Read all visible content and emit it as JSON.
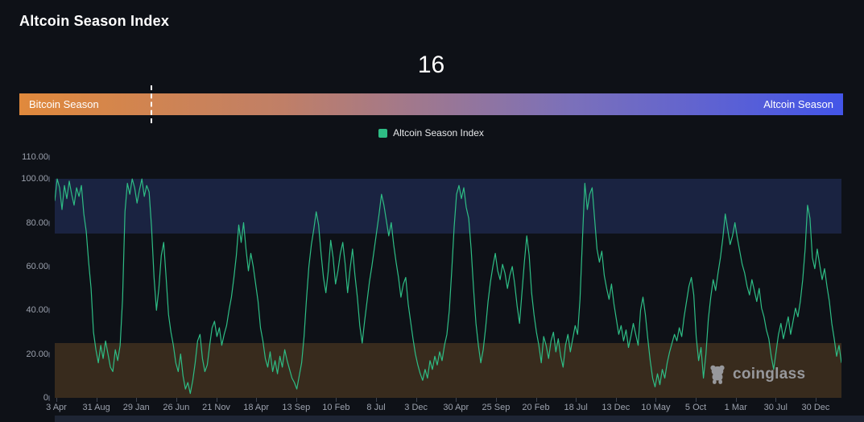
{
  "header": {
    "title": "Altcoin Season Index"
  },
  "gauge": {
    "value": "16",
    "left_label": "Bitcoin Season",
    "right_label": "Altcoin Season",
    "marker_percent": 16,
    "color_start": "#e0893c",
    "color_end": "#4355e8"
  },
  "legend": {
    "label": "Altcoin Season Index",
    "swatch_color": "#2ebd85"
  },
  "watermark": {
    "text": "coinglass"
  },
  "chart_data": {
    "type": "line",
    "title": "Altcoin Season Index",
    "series_name": "Altcoin Season Index",
    "line_color": "#2ebd85",
    "ylim": [
      0,
      110
    ],
    "grid": false,
    "legend_position": "top-center",
    "y_tick_labels": [
      "110.00",
      "100.00",
      "80.00",
      "60.00",
      "40.00",
      "20.00",
      "0"
    ],
    "y_tick_values": [
      110,
      100,
      80,
      60,
      40,
      20,
      0
    ],
    "x_tick_labels": [
      "3 Apr",
      "31 Aug",
      "29 Jan",
      "26 Jun",
      "21 Nov",
      "18 Apr",
      "13 Sep",
      "10 Feb",
      "8 Jul",
      "3 Dec",
      "30 Apr",
      "25 Sep",
      "20 Feb",
      "18 Jul",
      "13 Dec",
      "10 May",
      "5 Oct",
      "1 Mar",
      "30 Jul",
      "30 Dec"
    ],
    "bands": [
      {
        "name": "altcoin-season-zone",
        "from": 75,
        "to": 100,
        "color": "#1a2341"
      },
      {
        "name": "bitcoin-season-zone",
        "from": 0,
        "to": 25,
        "color": "#382b1d"
      }
    ],
    "values": [
      90,
      100,
      96,
      86,
      97,
      91,
      99,
      93,
      88,
      96,
      92,
      97,
      84,
      76,
      62,
      50,
      30,
      22,
      16,
      24,
      18,
      26,
      20,
      14,
      12,
      22,
      17,
      24,
      45,
      85,
      98,
      93,
      100,
      96,
      89,
      95,
      100,
      92,
      97,
      94,
      78,
      55,
      40,
      50,
      65,
      71,
      55,
      38,
      30,
      24,
      16,
      12,
      20,
      10,
      4,
      7,
      2,
      8,
      16,
      26,
      29,
      18,
      12,
      15,
      24,
      32,
      35,
      28,
      32,
      24,
      29,
      33,
      40,
      46,
      55,
      65,
      79,
      71,
      80,
      68,
      58,
      66,
      60,
      52,
      44,
      32,
      26,
      18,
      14,
      21,
      12,
      17,
      11,
      19,
      14,
      22,
      17,
      13,
      9,
      7,
      4,
      10,
      16,
      28,
      45,
      60,
      70,
      77,
      85,
      79,
      66,
      55,
      48,
      58,
      72,
      64,
      52,
      58,
      66,
      71,
      61,
      48,
      59,
      68,
      56,
      46,
      33,
      25,
      35,
      44,
      53,
      60,
      68,
      76,
      84,
      93,
      88,
      81,
      74,
      80,
      70,
      62,
      55,
      46,
      52,
      55,
      43,
      35,
      27,
      20,
      15,
      11,
      8,
      13,
      9,
      17,
      13,
      19,
      15,
      21,
      17,
      24,
      29,
      40,
      58,
      78,
      93,
      97,
      91,
      96,
      87,
      82,
      68,
      50,
      34,
      24,
      16,
      22,
      32,
      44,
      53,
      60,
      66,
      58,
      54,
      61,
      57,
      50,
      56,
      60,
      52,
      42,
      34,
      48,
      62,
      74,
      65,
      48,
      38,
      30,
      24,
      16,
      28,
      24,
      18,
      26,
      30,
      21,
      27,
      19,
      14,
      24,
      29,
      21,
      27,
      33,
      29,
      45,
      72,
      98,
      86,
      93,
      96,
      82,
      68,
      62,
      67,
      56,
      50,
      45,
      52,
      43,
      36,
      29,
      33,
      26,
      31,
      23,
      28,
      34,
      29,
      24,
      40,
      46,
      38,
      27,
      17,
      9,
      5,
      11,
      6,
      13,
      9,
      16,
      21,
      25,
      29,
      26,
      32,
      28,
      37,
      44,
      51,
      55,
      47,
      28,
      17,
      23,
      9,
      20,
      36,
      46,
      54,
      49,
      57,
      64,
      73,
      84,
      77,
      70,
      74,
      80,
      73,
      67,
      61,
      57,
      51,
      47,
      54,
      49,
      44,
      50,
      41,
      37,
      31,
      27,
      19,
      13,
      21,
      29,
      34,
      27,
      32,
      37,
      29,
      35,
      41,
      37,
      44,
      54,
      68,
      88,
      82,
      64,
      59,
      68,
      61,
      54,
      59,
      51,
      44,
      34,
      27,
      19,
      24,
      16
    ]
  }
}
